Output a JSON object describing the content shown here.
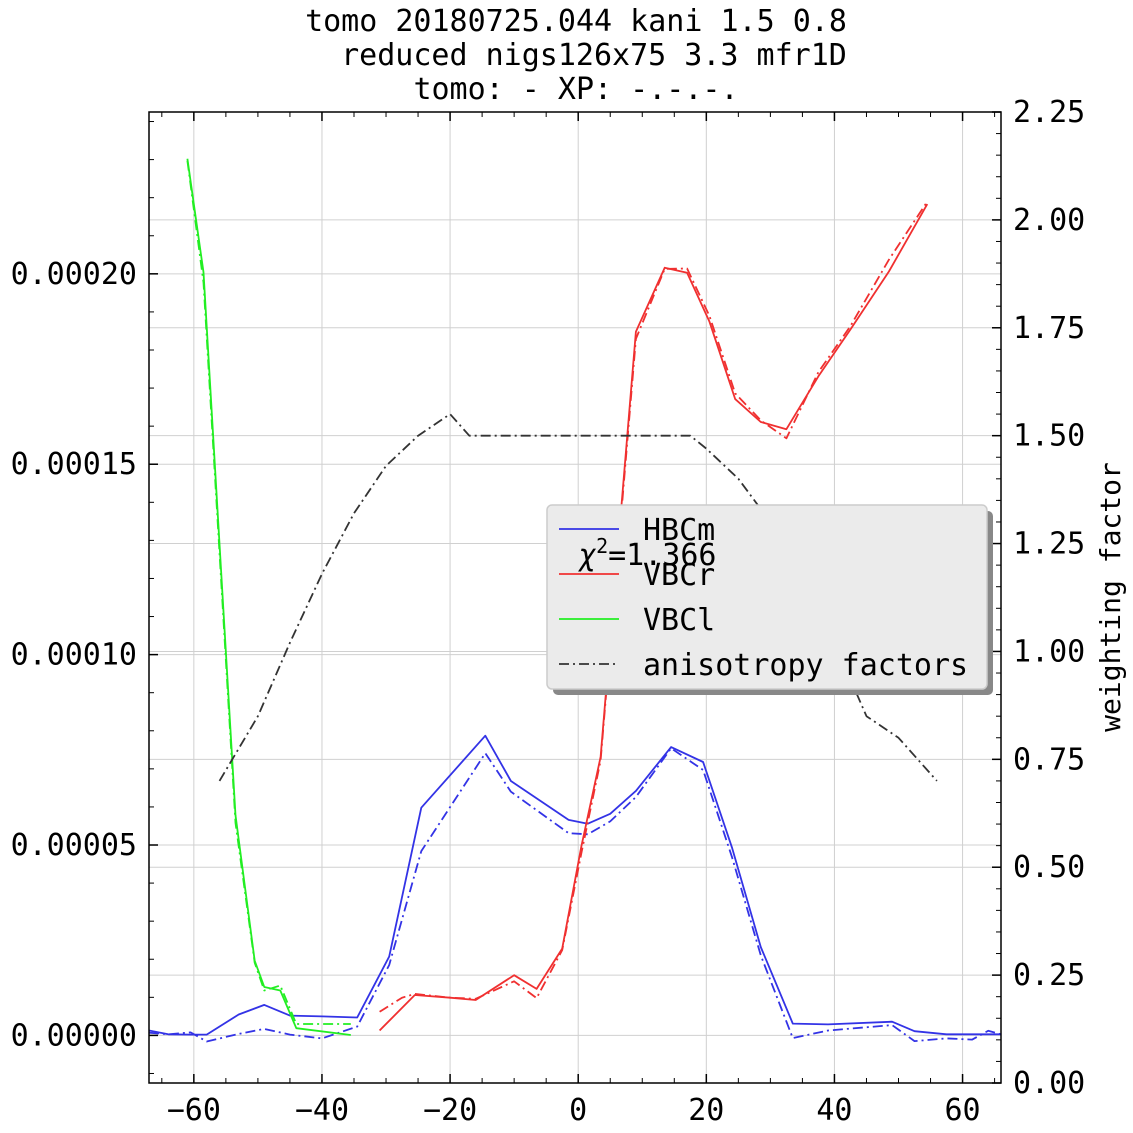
{
  "chart_data": {
    "type": "line",
    "title_lines": [
      "tomo 20180725.044 kani 1.5 0.8",
      "reduced nigs126x75 3.3 mfr1D",
      "tomo: -   XP: -.-.-."
    ],
    "xlabel": "",
    "ylabel_left": "",
    "ylabel_right": "weighting factor",
    "xlim": [
      -67,
      66
    ],
    "ylim_left": [
      -1.25e-05,
      0.0002425
    ],
    "ylim_right": [
      0.0,
      2.25
    ],
    "x_ticks": [
      "−60",
      "−40",
      "−20",
      "0",
      "20",
      "40",
      "60"
    ],
    "y_left_ticks": [
      "0.00000",
      "0.00005",
      "0.00010",
      "0.00015",
      "0.00020"
    ],
    "y_right_ticks": [
      "0.00",
      "0.25",
      "0.50",
      "0.75",
      "1.00",
      "1.25",
      "1.50",
      "1.75",
      "2.00",
      "2.25"
    ],
    "chi_squared": {
      "symbol": "χ",
      "exponent": "2",
      "value_text": "=1.366"
    },
    "colors": {
      "HBCm": "#3333e6",
      "VBCr": "#f03030",
      "VBCl": "#22ee22",
      "anisotropy": "#333333",
      "grid": "#d0d0d0"
    },
    "legend": {
      "position": "center-right",
      "entries": [
        {
          "label": "HBCm",
          "series": "HBCm"
        },
        {
          "label": "VBCr",
          "series": "VBCr"
        },
        {
          "label": "VBCl",
          "series": "VBCl"
        },
        {
          "label": "anisotropy factors",
          "series": "anisotropy"
        }
      ]
    },
    "series": [
      {
        "name": "HBCm",
        "style": "solid",
        "axis": "left",
        "color": "HBCm",
        "x": [
          -67,
          -64,
          -60.5,
          -58,
          -53,
          -49,
          -45,
          -40,
          -34.5,
          -29.5,
          -24.5,
          -14.5,
          -10.5,
          -1.5,
          1.5,
          5,
          9,
          14.5,
          19.5,
          24,
          28.5,
          33.5,
          39,
          49,
          52.5,
          57.5,
          61.5,
          66
        ],
        "y": [
          1.3e-06,
          3e-07,
          2e-07,
          2e-07,
          5.5e-06,
          8e-06,
          5.2e-06,
          5e-06,
          4.7e-06,
          2.07e-05,
          5.98e-05,
          7.87e-05,
          6.68e-05,
          5.66e-05,
          5.56e-05,
          5.82e-05,
          6.42e-05,
          7.57e-05,
          7.18e-05,
          4.94e-05,
          2.32e-05,
          3.1e-06,
          2.9e-06,
          3.6e-06,
          1.1e-06,
          3e-07,
          3e-07,
          3e-07
        ]
      },
      {
        "name": "HBCm model",
        "style": "dashdot",
        "axis": "left",
        "color": "HBCm",
        "x": [
          -67,
          -64,
          -60.5,
          -58,
          -53,
          -49,
          -45,
          -40,
          -34.5,
          -29.5,
          -24.5,
          -14.5,
          -10.5,
          -1.5,
          1.5,
          5,
          9,
          14.5,
          19.5,
          24,
          28.5,
          33.5,
          39,
          49,
          52.5,
          57.5,
          61.5,
          64,
          66
        ],
        "y": [
          7e-07,
          3e-07,
          8e-07,
          -1.6e-06,
          4e-07,
          1.7e-06,
          2e-07,
          -8e-07,
          2.3e-06,
          1.85e-05,
          4.84e-05,
          7.41e-05,
          6.4e-05,
          5.31e-05,
          5.28e-05,
          5.62e-05,
          6.26e-05,
          7.54e-05,
          6.97e-05,
          4.69e-05,
          2.1e-05,
          -7e-07,
          1.3e-06,
          2.7e-06,
          -1.5e-06,
          -8e-07,
          -1.1e-06,
          1.2e-06,
          3e-07
        ]
      },
      {
        "name": "VBCr",
        "style": "solid",
        "axis": "left",
        "color": "VBCr",
        "x": [
          -31,
          -25.5,
          -20,
          -16,
          -10,
          -6.5,
          -2.5,
          0.5,
          3.5,
          9,
          13.5,
          17,
          20.5,
          24.5,
          28.5,
          32.5,
          37.5,
          42.5,
          48.5,
          54.5
        ],
        "y": [
          1.3e-06,
          1.06e-05,
          9.9e-06,
          9.3e-06,
          1.58e-05,
          1.22e-05,
          2.28e-05,
          4.97e-05,
          7.31e-05,
          0.0001848,
          0.0002016,
          0.0002003,
          0.0001874,
          0.0001671,
          0.0001611,
          0.0001592,
          0.0001731,
          0.0001854,
          0.0002006,
          0.0002183
        ]
      },
      {
        "name": "VBCr model",
        "style": "dashdot",
        "axis": "left",
        "color": "VBCr",
        "x": [
          -31,
          -27.5,
          -25.5,
          -20,
          -16,
          -10,
          -6.5,
          -2.5,
          0.5,
          3.5,
          9,
          13.5,
          17,
          20.5,
          24.5,
          28.5,
          32.5,
          37.5,
          42.5,
          48.5,
          54.5
        ],
        "y": [
          6.2e-06,
          9.9e-06,
          1.09e-05,
          9.9e-06,
          9.6e-06,
          1.42e-05,
          9.8e-06,
          2.24e-05,
          4.79e-05,
          7.22e-05,
          0.0001829,
          0.0002013,
          0.0002014,
          0.0001889,
          0.0001686,
          0.0001615,
          0.0001568,
          0.0001742,
          0.0001863,
          0.0002037,
          0.000219
        ]
      },
      {
        "name": "VBCl",
        "style": "solid",
        "axis": "left",
        "color": "VBCl",
        "x": [
          -61,
          -58.5,
          -53.5,
          -50.5,
          -49,
          -46.5,
          -44,
          -35.5
        ],
        "y": [
          0.0002302,
          0.0002004,
          5.78e-05,
          1.96e-05,
          1.27e-05,
          1.18e-05,
          1.9e-06,
          1e-07
        ]
      },
      {
        "name": "VBCl model",
        "style": "dashdot",
        "axis": "left",
        "color": "VBCl",
        "x": [
          -61,
          -58.5,
          -53.5,
          -50.5,
          -49,
          -46.5,
          -44,
          -35.5
        ],
        "y": [
          0.0002297,
          0.0001977,
          5.58e-05,
          1.91e-05,
          1.18e-05,
          1.31e-05,
          3e-06,
          3e-06
        ]
      },
      {
        "name": "anisotropy factors",
        "style": "dashdot",
        "axis": "right",
        "color": "anisotropy",
        "x": [
          -56,
          -50,
          -45,
          -40,
          -35,
          -30,
          -25,
          -20,
          -17,
          -12,
          -5,
          0,
          5,
          10,
          17.5,
          20,
          25,
          30,
          35,
          40,
          45,
          50,
          56
        ],
        "y": [
          0.7,
          0.85,
          1.02,
          1.18,
          1.32,
          1.43,
          1.5,
          1.55,
          1.5,
          1.5,
          1.5,
          1.5,
          1.5,
          1.5,
          1.5,
          1.47,
          1.4,
          1.3,
          1.17,
          1.02,
          0.85,
          0.8,
          0.7
        ]
      }
    ]
  }
}
